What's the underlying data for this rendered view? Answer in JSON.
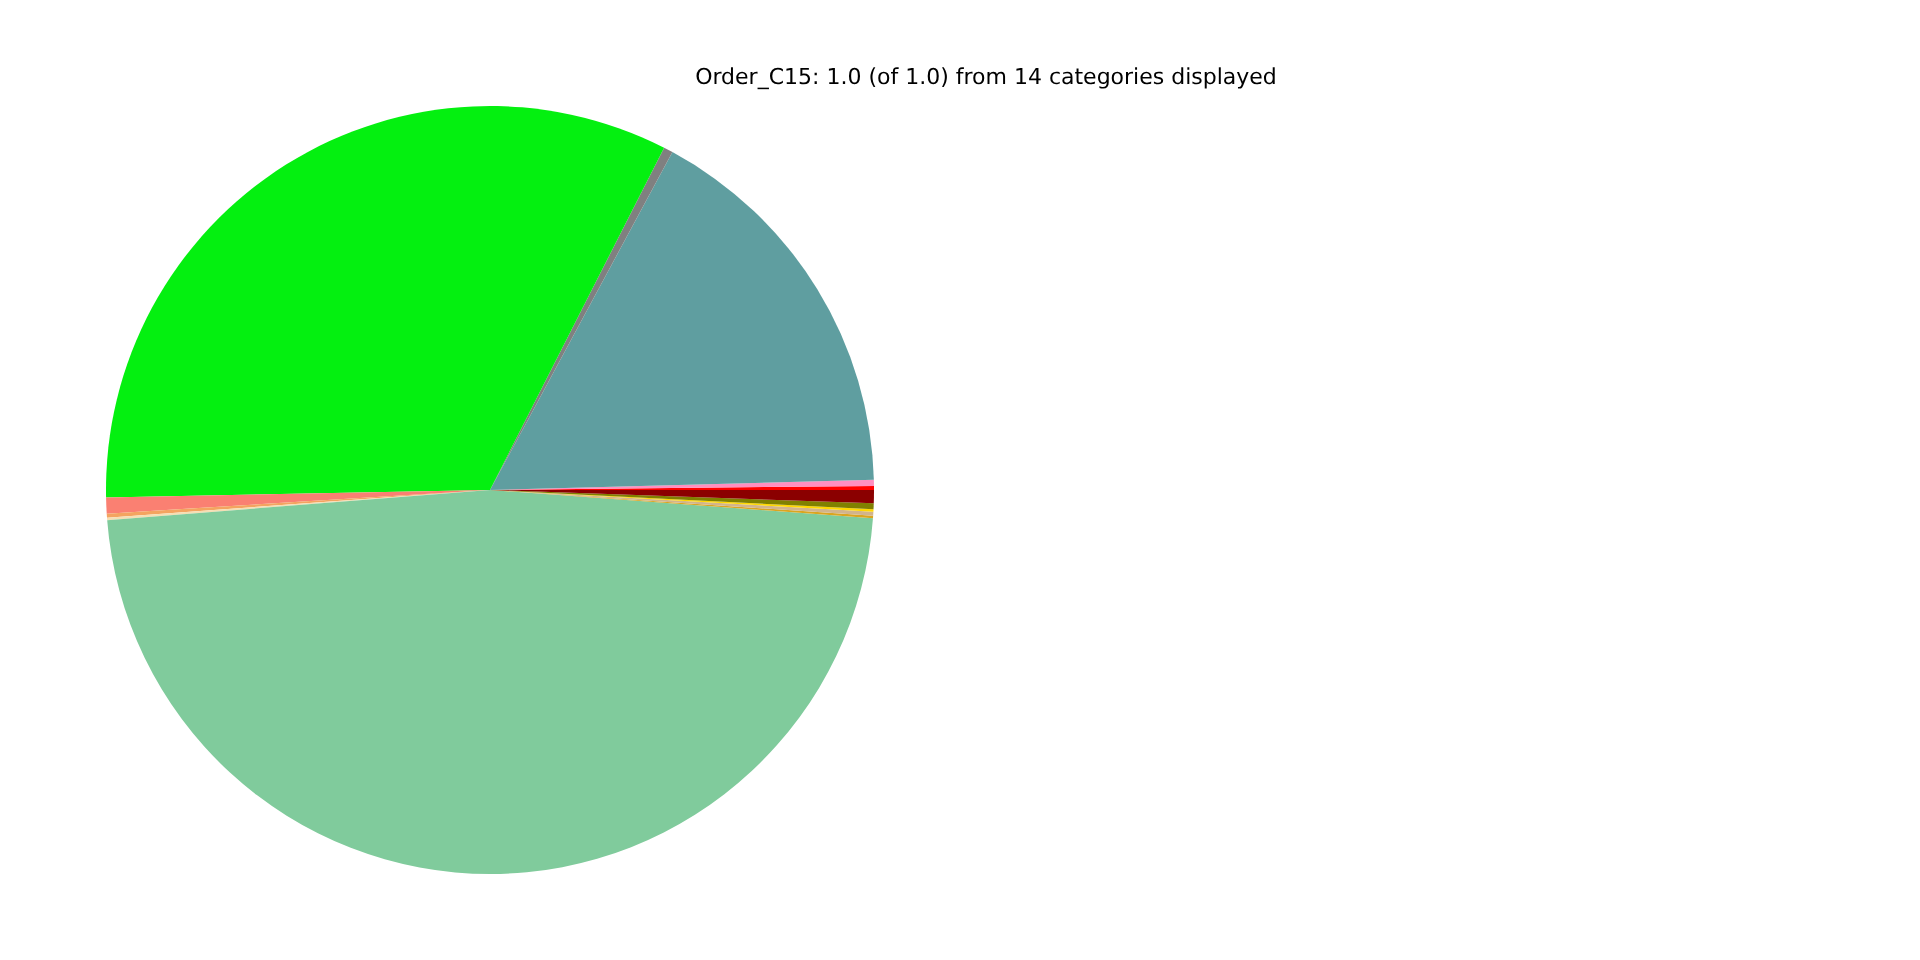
{
  "chart_data": {
    "type": "pie",
    "title": "Order_C15: 1.0 (of 1.0) from 14 categories displayed",
    "categories": [
      null,
      null,
      null,
      null,
      null,
      null,
      null,
      null,
      null,
      null,
      null,
      null,
      null,
      null
    ],
    "values": [
      0.17,
      0.25,
      16.7,
      0.39,
      32.8,
      0.67,
      0.17,
      0.1,
      47.58,
      0.1,
      0.17,
      0.1,
      0.25,
      0.55
    ],
    "colors": [
      "#ff0000",
      "#ff8fc0",
      "#5f9ea0",
      "#808080",
      "#04f010",
      "#fa8072",
      "#f4a460",
      "#f5deb3",
      "#80cb9c",
      "#daa520",
      "#d2b48c",
      "#ffd700",
      "#808000",
      "#8b0000"
    ],
    "legend": false
  }
}
